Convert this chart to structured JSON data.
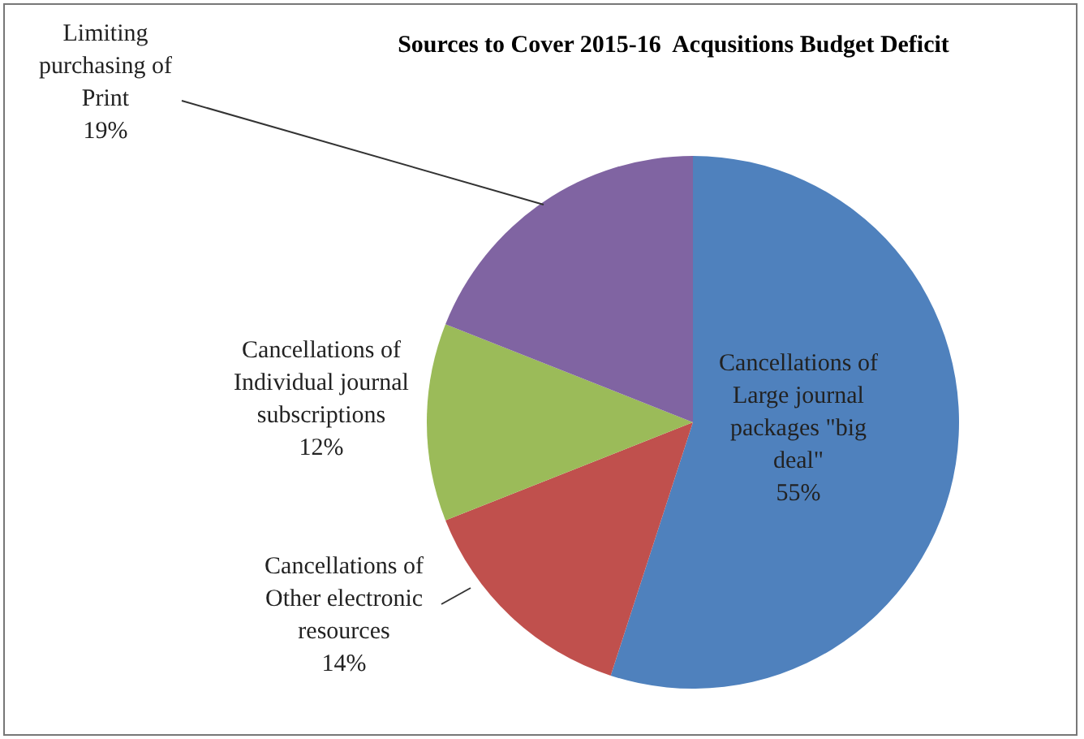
{
  "chart_data": {
    "type": "pie",
    "title": "Sources to Cover 2015-16  Acqusitions Budget Deficit",
    "categories": [
      "Cancellations of Large journal packages \"big deal\"",
      "Cancellations of Other electronic resources",
      "Cancellations of Individual journal subscriptions",
      "Limiting purchasing of Print"
    ],
    "values": [
      55,
      14,
      12,
      19
    ],
    "colors": [
      "#4f81bd",
      "#c0504d",
      "#9bbb59",
      "#8064a2"
    ],
    "value_labels": [
      "55%",
      "14%",
      "12%",
      "19%"
    ],
    "legend": false
  }
}
